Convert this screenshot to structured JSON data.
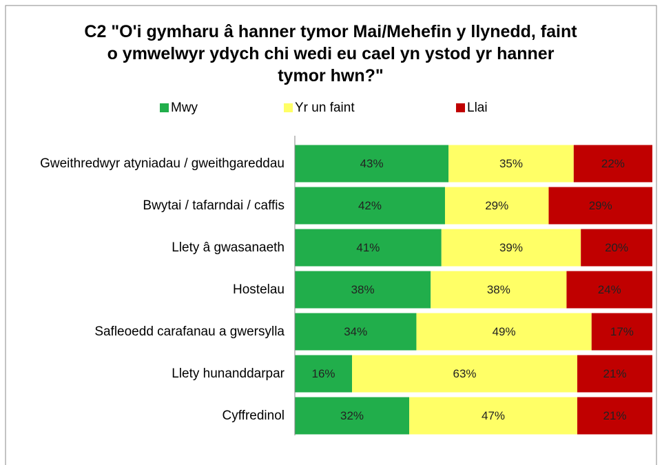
{
  "chart_data": {
    "type": "stacked-bar-horizontal",
    "title": "C2 \"O'i gymharu â hanner tymor Mai/Mehefin y llynedd, faint o ymwelwyr ydych chi wedi eu cael yn ystod yr hanner tymor hwn?\"",
    "categories": [
      "Gweithredwyr atyniadau / gweithgareddau",
      "Bwytai / tafarndai / caffis",
      "Llety â gwasanaeth",
      "Hostelau",
      "Safleoedd carafanau a gwersylla",
      "Llety hunanddarpar",
      "Cyffredinol"
    ],
    "series": [
      {
        "name": "Mwy",
        "color": "#21ae4b",
        "values": [
          43,
          42,
          41,
          38,
          34,
          16,
          32
        ],
        "value_labels": [
          "43%",
          "42%",
          "41%",
          "38%",
          "34%",
          "16%",
          "32%"
        ]
      },
      {
        "name": "Yr un faint",
        "color": "#ffff66",
        "values": [
          35,
          29,
          39,
          38,
          49,
          63,
          47
        ],
        "value_labels": [
          "35%",
          "29%",
          "39%",
          "38%",
          "49%",
          "63%",
          "47%"
        ]
      },
      {
        "name": "Llai",
        "color": "#c00000",
        "values": [
          22,
          29,
          20,
          24,
          17,
          21,
          21
        ],
        "value_labels": [
          "22%",
          "29%",
          "20%",
          "24%",
          "17%",
          "21%",
          "21%"
        ]
      }
    ],
    "xlim": [
      0,
      100
    ]
  }
}
